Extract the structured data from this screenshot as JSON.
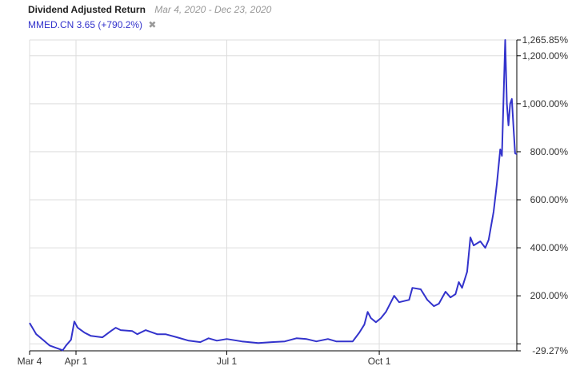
{
  "header": {
    "title": "Dividend Adjusted Return",
    "date_range": "Mar 4, 2020 - Dec 23, 2020"
  },
  "legend": {
    "label": "MMED.CN 3.65 (+790.2%)",
    "remove_icon": "close-icon"
  },
  "chart_data": {
    "type": "line",
    "title": "Dividend Adjusted Return",
    "xlabel": "",
    "ylabel": "",
    "x_ticks": [
      {
        "label": "Mar 4",
        "date": "2020-03-04"
      },
      {
        "label": "Apr 1",
        "date": "2020-04-01"
      },
      {
        "label": "Jul 1",
        "date": "2020-07-01"
      },
      {
        "label": "Oct 1",
        "date": "2020-10-01"
      }
    ],
    "y_ticks": [
      {
        "value": 1265.85,
        "label": "1,265.85%"
      },
      {
        "value": 1200,
        "label": "1,200.00%"
      },
      {
        "value": 1000,
        "label": "1,000.00%"
      },
      {
        "value": 800,
        "label": "800.00%"
      },
      {
        "value": 600,
        "label": "600.00%"
      },
      {
        "value": 400,
        "label": "400.00%"
      },
      {
        "value": 200,
        "label": "200.00%"
      },
      {
        "value": 0,
        "label": ""
      },
      {
        "value": -29.27,
        "label": "-29.27%"
      }
    ],
    "xlim": [
      "2020-03-04",
      "2020-12-23"
    ],
    "ylim": [
      -29.27,
      1265.85
    ],
    "grid": true,
    "series": [
      {
        "name": "MMED.CN",
        "color": "#3333cc",
        "points": [
          [
            "2020-03-04",
            87
          ],
          [
            "2020-03-08",
            40
          ],
          [
            "2020-03-12",
            17
          ],
          [
            "2020-03-16",
            -7
          ],
          [
            "2020-03-20",
            -17
          ],
          [
            "2020-03-24",
            -27
          ],
          [
            "2020-03-26",
            -7
          ],
          [
            "2020-03-29",
            17
          ],
          [
            "2020-03-31",
            93
          ],
          [
            "2020-04-02",
            67
          ],
          [
            "2020-04-06",
            47
          ],
          [
            "2020-04-10",
            33
          ],
          [
            "2020-04-17",
            27
          ],
          [
            "2020-04-22",
            53
          ],
          [
            "2020-04-25",
            67
          ],
          [
            "2020-04-28",
            57
          ],
          [
            "2020-05-05",
            53
          ],
          [
            "2020-05-08",
            40
          ],
          [
            "2020-05-13",
            57
          ],
          [
            "2020-05-20",
            40
          ],
          [
            "2020-05-25",
            40
          ],
          [
            "2020-06-01",
            27
          ],
          [
            "2020-06-08",
            13
          ],
          [
            "2020-06-15",
            7
          ],
          [
            "2020-06-20",
            23
          ],
          [
            "2020-06-25",
            13
          ],
          [
            "2020-07-01",
            20
          ],
          [
            "2020-07-10",
            10
          ],
          [
            "2020-07-20",
            3
          ],
          [
            "2020-07-28",
            7
          ],
          [
            "2020-08-05",
            10
          ],
          [
            "2020-08-12",
            23
          ],
          [
            "2020-08-18",
            20
          ],
          [
            "2020-08-24",
            10
          ],
          [
            "2020-08-31",
            20
          ],
          [
            "2020-09-05",
            10
          ],
          [
            "2020-09-15",
            10
          ],
          [
            "2020-09-19",
            47
          ],
          [
            "2020-09-22",
            80
          ],
          [
            "2020-09-24",
            133
          ],
          [
            "2020-09-26",
            107
          ],
          [
            "2020-09-29",
            90
          ],
          [
            "2020-10-02",
            107
          ],
          [
            "2020-10-05",
            133
          ],
          [
            "2020-10-08",
            173
          ],
          [
            "2020-10-10",
            200
          ],
          [
            "2020-10-13",
            173
          ],
          [
            "2020-10-19",
            183
          ],
          [
            "2020-10-21",
            233
          ],
          [
            "2020-10-26",
            227
          ],
          [
            "2020-10-30",
            183
          ],
          [
            "2020-11-03",
            157
          ],
          [
            "2020-11-06",
            167
          ],
          [
            "2020-11-10",
            217
          ],
          [
            "2020-11-13",
            193
          ],
          [
            "2020-11-16",
            207
          ],
          [
            "2020-11-18",
            257
          ],
          [
            "2020-11-20",
            233
          ],
          [
            "2020-11-23",
            300
          ],
          [
            "2020-11-25",
            443
          ],
          [
            "2020-11-27",
            410
          ],
          [
            "2020-12-01",
            427
          ],
          [
            "2020-12-04",
            400
          ],
          [
            "2020-12-06",
            433
          ],
          [
            "2020-12-09",
            550
          ],
          [
            "2020-12-11",
            667
          ],
          [
            "2020-12-13",
            810
          ],
          [
            "2020-12-14",
            783
          ],
          [
            "2020-12-16",
            1265.85
          ],
          [
            "2020-12-17",
            1000
          ],
          [
            "2020-12-18",
            910
          ],
          [
            "2020-12-19",
            1000
          ],
          [
            "2020-12-20",
            1020
          ],
          [
            "2020-12-21",
            900
          ],
          [
            "2020-12-22",
            793
          ],
          [
            "2020-12-23",
            790.2
          ]
        ]
      }
    ]
  }
}
